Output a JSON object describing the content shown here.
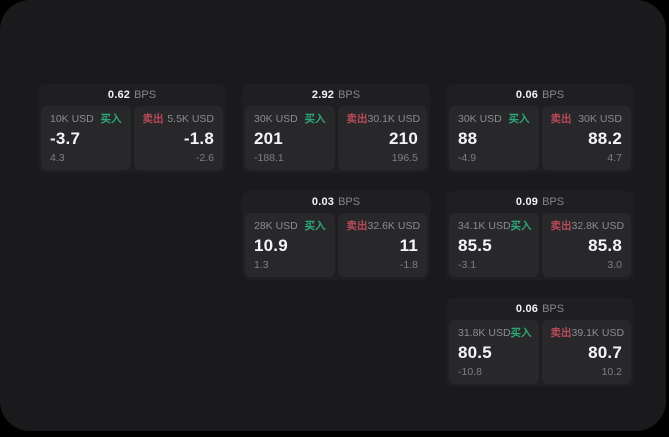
{
  "labels": {
    "bps_unit": "BPS",
    "buy": "买入",
    "sell": "卖出"
  },
  "colors": {
    "surface": "#1a1a1c",
    "card": "#1f1f22",
    "panel": "#28282b",
    "buy_green": "#2ea777",
    "sell_red": "#b84a58"
  },
  "cards": [
    {
      "bps": "0.62",
      "buy": {
        "size": "10K USD",
        "value": "-3.7",
        "sub": "4.3"
      },
      "sell": {
        "size": "5.5K USD",
        "value": "-1.8",
        "sub": "-2.6"
      }
    },
    {
      "bps": "2.92",
      "buy": {
        "size": "30K USD",
        "value": "201",
        "sub": "-188.1"
      },
      "sell": {
        "size": "30.1K USD",
        "value": "210",
        "sub": "196.5"
      }
    },
    {
      "bps": "0.06",
      "buy": {
        "size": "30K USD",
        "value": "88",
        "sub": "-4.9"
      },
      "sell": {
        "size": "30K USD",
        "value": "88.2",
        "sub": "4.7"
      }
    },
    {
      "bps": "0.03",
      "buy": {
        "size": "28K USD",
        "value": "10.9",
        "sub": "1.3"
      },
      "sell": {
        "size": "32.6K USD",
        "value": "11",
        "sub": "-1.8"
      }
    },
    {
      "bps": "0.09",
      "buy": {
        "size": "34.1K USD",
        "value": "85.5",
        "sub": "-3.1"
      },
      "sell": {
        "size": "32.8K USD",
        "value": "85.8",
        "sub": "3.0"
      }
    },
    {
      "bps": "0.06",
      "buy": {
        "size": "31.8K USD",
        "value": "80.5",
        "sub": "-10.8"
      },
      "sell": {
        "size": "39.1K USD",
        "value": "80.7",
        "sub": "10.2"
      }
    }
  ]
}
